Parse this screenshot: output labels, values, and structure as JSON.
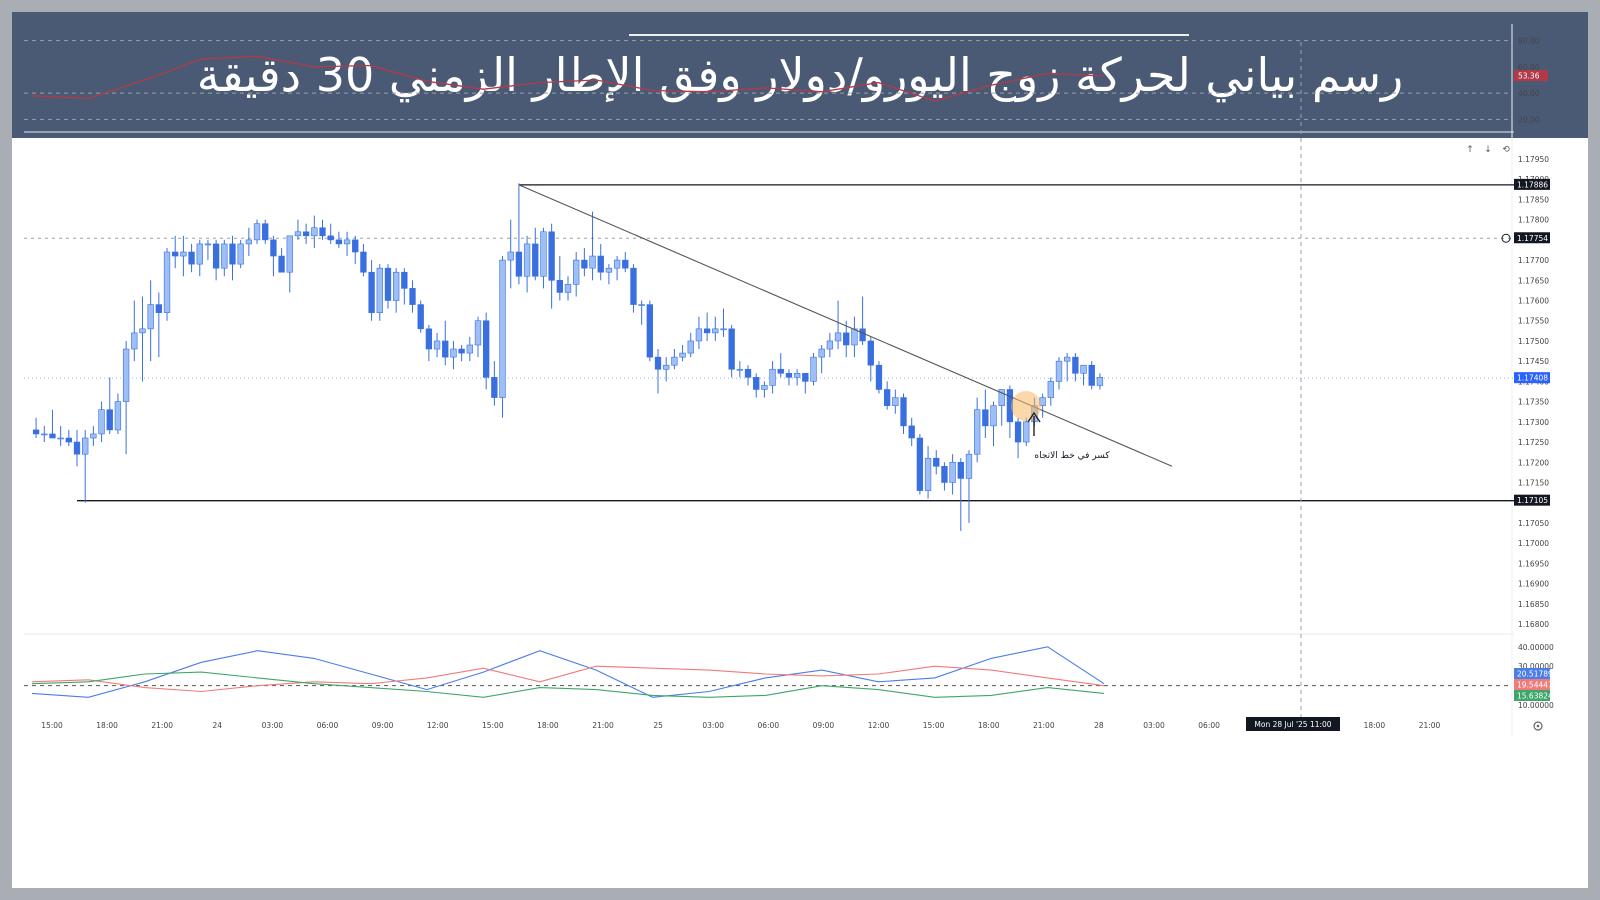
{
  "header": {
    "title": "رسم بياني لحركة زوج اليورو/دولار وفق الإطار الزمني 30 دقيقة"
  },
  "colors": {
    "banner": "#4a5a75",
    "candle_up": "#9dbff5",
    "candle_down": "#3a6fe0",
    "rsi_line": "#b23a48",
    "adx_blue": "#4a7de8",
    "adx_red": "#f07b7b",
    "adx_green": "#3fa66b",
    "price_tag_blue": "#2962ff",
    "label_dark": "#131722"
  },
  "toolbar": {
    "up_arrow": "↑",
    "down_arrow": "↓",
    "reset_icon": "⟲"
  },
  "annotation": {
    "text": "كسر في خط الاتجاه"
  },
  "crosshair": {
    "time_label": "Mon 28 Jul '25   11:00"
  },
  "chart_data": [
    {
      "type": "line",
      "panel": "rsi",
      "y_ticks": [
        "80.00",
        "60.00",
        "40.00",
        "20.00"
      ],
      "levels": [
        80,
        40,
        20
      ],
      "last_value_label": "53.36",
      "x": [
        "15:00",
        "18:00",
        "21:00",
        "24",
        "03:00",
        "06:00",
        "09:00",
        "12:00",
        "15:00",
        "18:00",
        "21:00",
        "25",
        "03:00",
        "06:00",
        "09:00",
        "12:00",
        "15:00",
        "18:00",
        "21:00",
        "28"
      ],
      "series": [
        {
          "values": [
            38,
            36,
            50,
            66,
            68,
            60,
            61,
            49,
            43,
            48,
            50,
            42,
            41,
            44,
            41,
            48,
            34,
            46,
            55,
            53
          ]
        }
      ]
    },
    {
      "type": "candlestick",
      "panel": "price",
      "y_ticks": [
        "1.17950",
        "1.17900",
        "1.17850",
        "1.17800",
        "1.17750",
        "1.17700",
        "1.17650",
        "1.17600",
        "1.17550",
        "1.17500",
        "1.17450",
        "1.17400",
        "1.17350",
        "1.17300",
        "1.17250",
        "1.17200",
        "1.17150",
        "1.17100",
        "1.17050",
        "1.17000",
        "1.16950",
        "1.16900",
        "1.16850",
        "1.16800"
      ],
      "ylim": [
        1.168,
        1.1795
      ],
      "tags": [
        {
          "value": 1.17886,
          "label": "1.17886",
          "style": "dark"
        },
        {
          "value": 1.17754,
          "label": "1.17754",
          "style": "dark"
        },
        {
          "value": 1.17408,
          "label": "1.17408",
          "style": "blue"
        },
        {
          "value": 1.17105,
          "label": "1.17105",
          "style": "dark"
        }
      ],
      "horizontal_levels": [
        1.17886,
        1.17105
      ],
      "trendline": {
        "from": [
          "17:00",
          1.17886
        ],
        "to": [
          "23:30",
          1.1719
        ]
      },
      "x_ticks": [
        "15:00",
        "18:00",
        "21:00",
        "24",
        "03:00",
        "06:00",
        "09:00",
        "12:00",
        "15:00",
        "18:00",
        "21:00",
        "25",
        "03:00",
        "06:00",
        "09:00",
        "12:00",
        "15:00",
        "18:00",
        "21:00",
        "28",
        "03:00",
        "06:00",
        "Mon 28 Jul '25   11:00",
        "15:00",
        "18:00",
        "21:00"
      ],
      "ohlc": [
        [
          1.1728,
          1.1731,
          1.1726,
          1.1727
        ],
        [
          1.1727,
          1.1729,
          1.1725,
          1.1727
        ],
        [
          1.1727,
          1.1733,
          1.1726,
          1.1726
        ],
        [
          1.1726,
          1.1729,
          1.1724,
          1.1726
        ],
        [
          1.1726,
          1.1728,
          1.1724,
          1.1725
        ],
        [
          1.1725,
          1.1728,
          1.1719,
          1.1722
        ],
        [
          1.1722,
          1.1728,
          1.171,
          1.1726
        ],
        [
          1.1726,
          1.1729,
          1.1724,
          1.1727
        ],
        [
          1.1727,
          1.1735,
          1.1725,
          1.1733
        ],
        [
          1.1733,
          1.1741,
          1.1727,
          1.1728
        ],
        [
          1.1728,
          1.1737,
          1.1727,
          1.1735
        ],
        [
          1.1735,
          1.175,
          1.1722,
          1.1748
        ],
        [
          1.1748,
          1.176,
          1.1745,
          1.1752
        ],
        [
          1.1752,
          1.1761,
          1.174,
          1.1753
        ],
        [
          1.1753,
          1.1765,
          1.1745,
          1.1759
        ],
        [
          1.1759,
          1.1762,
          1.1746,
          1.1757
        ],
        [
          1.1757,
          1.1773,
          1.1755,
          1.1772
        ],
        [
          1.1772,
          1.1776,
          1.1768,
          1.1771
        ],
        [
          1.1771,
          1.1776,
          1.1766,
          1.1772
        ],
        [
          1.1772,
          1.1774,
          1.1767,
          1.1769
        ],
        [
          1.1769,
          1.1775,
          1.1766,
          1.1774
        ],
        [
          1.1774,
          1.1775,
          1.177,
          1.1774
        ],
        [
          1.1774,
          1.1775,
          1.1765,
          1.1768
        ],
        [
          1.1768,
          1.1775,
          1.1766,
          1.1774
        ],
        [
          1.1774,
          1.1776,
          1.1765,
          1.1769
        ],
        [
          1.1769,
          1.1775,
          1.1768,
          1.1774
        ],
        [
          1.1774,
          1.1778,
          1.1771,
          1.1775
        ],
        [
          1.1775,
          1.178,
          1.1774,
          1.1779
        ],
        [
          1.1779,
          1.178,
          1.1774,
          1.1775
        ],
        [
          1.1775,
          1.1776,
          1.1766,
          1.1771
        ],
        [
          1.1771,
          1.1773,
          1.1767,
          1.1767
        ],
        [
          1.1767,
          1.1776,
          1.1762,
          1.1776
        ],
        [
          1.1776,
          1.178,
          1.1775,
          1.1777
        ],
        [
          1.1777,
          1.1779,
          1.1774,
          1.1776
        ],
        [
          1.1776,
          1.1781,
          1.1773,
          1.1778
        ],
        [
          1.1778,
          1.178,
          1.1775,
          1.1776
        ],
        [
          1.1776,
          1.1779,
          1.1774,
          1.1775
        ],
        [
          1.1775,
          1.1777,
          1.1773,
          1.1774
        ],
        [
          1.1774,
          1.1777,
          1.1771,
          1.1775
        ],
        [
          1.1775,
          1.1776,
          1.1769,
          1.1772
        ],
        [
          1.1772,
          1.1774,
          1.1766,
          1.1767
        ],
        [
          1.1767,
          1.177,
          1.1755,
          1.1757
        ],
        [
          1.1757,
          1.1769,
          1.1755,
          1.1768
        ],
        [
          1.1768,
          1.1769,
          1.1758,
          1.176
        ],
        [
          1.176,
          1.1768,
          1.1757,
          1.1767
        ],
        [
          1.1767,
          1.1768,
          1.1759,
          1.1763
        ],
        [
          1.1763,
          1.1765,
          1.1757,
          1.1759
        ],
        [
          1.1759,
          1.176,
          1.1752,
          1.1753
        ],
        [
          1.1753,
          1.1754,
          1.1745,
          1.1748
        ],
        [
          1.1748,
          1.1752,
          1.1746,
          1.175
        ],
        [
          1.175,
          1.1755,
          1.1744,
          1.1746
        ],
        [
          1.1746,
          1.175,
          1.1743,
          1.1748
        ],
        [
          1.1748,
          1.1749,
          1.1745,
          1.1747
        ],
        [
          1.1747,
          1.1751,
          1.1745,
          1.1749
        ],
        [
          1.1749,
          1.1756,
          1.1746,
          1.1755
        ],
        [
          1.1755,
          1.1757,
          1.1738,
          1.1741
        ],
        [
          1.1741,
          1.1745,
          1.1734,
          1.1736
        ],
        [
          1.1736,
          1.1771,
          1.1731,
          1.177
        ],
        [
          1.177,
          1.178,
          1.1763,
          1.1772
        ],
        [
          1.1772,
          1.1789,
          1.1764,
          1.1766
        ],
        [
          1.1766,
          1.1776,
          1.1762,
          1.1774
        ],
        [
          1.1774,
          1.1778,
          1.1765,
          1.1766
        ],
        [
          1.1766,
          1.1778,
          1.1763,
          1.1777
        ],
        [
          1.1777,
          1.1779,
          1.1758,
          1.1765
        ],
        [
          1.1765,
          1.1771,
          1.176,
          1.1762
        ],
        [
          1.1762,
          1.1766,
          1.176,
          1.1764
        ],
        [
          1.1764,
          1.1772,
          1.1761,
          1.177
        ],
        [
          1.177,
          1.1773,
          1.1766,
          1.1768
        ],
        [
          1.1768,
          1.1782,
          1.1765,
          1.1771
        ],
        [
          1.1771,
          1.1774,
          1.1765,
          1.1767
        ],
        [
          1.1767,
          1.1769,
          1.1764,
          1.1768
        ],
        [
          1.1768,
          1.1771,
          1.1765,
          1.177
        ],
        [
          1.177,
          1.1772,
          1.1767,
          1.1768
        ],
        [
          1.1768,
          1.1769,
          1.1757,
          1.1759
        ],
        [
          1.1759,
          1.176,
          1.1754,
          1.1759
        ],
        [
          1.1759,
          1.176,
          1.1745,
          1.1746
        ],
        [
          1.1746,
          1.1748,
          1.1737,
          1.1743
        ],
        [
          1.1743,
          1.1746,
          1.174,
          1.1744
        ],
        [
          1.1744,
          1.1748,
          1.1743,
          1.1746
        ],
        [
          1.1746,
          1.1749,
          1.1745,
          1.1747
        ],
        [
          1.1747,
          1.1752,
          1.1746,
          1.175
        ],
        [
          1.175,
          1.1756,
          1.1748,
          1.1753
        ],
        [
          1.1753,
          1.1757,
          1.175,
          1.1752
        ],
        [
          1.1752,
          1.1756,
          1.175,
          1.1753
        ],
        [
          1.1753,
          1.1758,
          1.1751,
          1.1753
        ],
        [
          1.1753,
          1.1754,
          1.1741,
          1.1743
        ],
        [
          1.1743,
          1.1745,
          1.1741,
          1.1743
        ],
        [
          1.1743,
          1.1744,
          1.1739,
          1.1741
        ],
        [
          1.1741,
          1.1742,
          1.1736,
          1.1738
        ],
        [
          1.1738,
          1.174,
          1.1736,
          1.1739
        ],
        [
          1.1739,
          1.1745,
          1.1737,
          1.1743
        ],
        [
          1.1743,
          1.1747,
          1.1741,
          1.1742
        ],
        [
          1.1742,
          1.1743,
          1.1739,
          1.1741
        ],
        [
          1.1741,
          1.1743,
          1.1739,
          1.1742
        ],
        [
          1.1742,
          1.1742,
          1.1737,
          1.174
        ],
        [
          1.174,
          1.1747,
          1.1739,
          1.1746
        ],
        [
          1.1746,
          1.1749,
          1.1742,
          1.1748
        ],
        [
          1.1748,
          1.1752,
          1.1746,
          1.175
        ],
        [
          1.175,
          1.176,
          1.1748,
          1.1752
        ],
        [
          1.1752,
          1.1755,
          1.1746,
          1.1749
        ],
        [
          1.1749,
          1.1756,
          1.1746,
          1.1753
        ],
        [
          1.1753,
          1.1761,
          1.1749,
          1.175
        ],
        [
          1.175,
          1.1751,
          1.174,
          1.1744
        ],
        [
          1.1744,
          1.1745,
          1.1737,
          1.1738
        ],
        [
          1.1738,
          1.174,
          1.1733,
          1.1734
        ],
        [
          1.1734,
          1.1738,
          1.1732,
          1.1736
        ],
        [
          1.1736,
          1.1737,
          1.1727,
          1.1729
        ],
        [
          1.1729,
          1.1731,
          1.1724,
          1.1726
        ],
        [
          1.1726,
          1.1727,
          1.1712,
          1.1713
        ],
        [
          1.1713,
          1.1724,
          1.1711,
          1.1721
        ],
        [
          1.1721,
          1.1723,
          1.1717,
          1.1719
        ],
        [
          1.1719,
          1.172,
          1.1713,
          1.1715
        ],
        [
          1.1715,
          1.1722,
          1.1712,
          1.172
        ],
        [
          1.172,
          1.1721,
          1.1703,
          1.1716
        ],
        [
          1.1716,
          1.1723,
          1.1705,
          1.1722
        ],
        [
          1.1722,
          1.1736,
          1.172,
          1.1733
        ],
        [
          1.1733,
          1.1738,
          1.1726,
          1.1729
        ],
        [
          1.1729,
          1.1735,
          1.1724,
          1.1734
        ],
        [
          1.1734,
          1.1738,
          1.1729,
          1.1738
        ],
        [
          1.1738,
          1.1739,
          1.1726,
          1.173
        ],
        [
          1.173,
          1.1731,
          1.1721,
          1.1725
        ],
        [
          1.1725,
          1.1731,
          1.1724,
          1.173
        ],
        [
          1.173,
          1.1736,
          1.1729,
          1.1734
        ],
        [
          1.1734,
          1.1737,
          1.1731,
          1.1736
        ],
        [
          1.1736,
          1.1741,
          1.1734,
          1.174
        ],
        [
          1.174,
          1.1746,
          1.1738,
          1.1745
        ],
        [
          1.1745,
          1.1747,
          1.174,
          1.1746
        ],
        [
          1.1746,
          1.1747,
          1.174,
          1.1742
        ],
        [
          1.1742,
          1.1744,
          1.1739,
          1.1744
        ],
        [
          1.1744,
          1.1745,
          1.1738,
          1.1739
        ],
        [
          1.1739,
          1.1742,
          1.1738,
          1.1741
        ]
      ]
    },
    {
      "type": "line",
      "panel": "adx",
      "y_ticks": [
        "40.00000",
        "30.00000",
        "10.00000"
      ],
      "level": 20,
      "tags": [
        {
          "value": 20.51789,
          "label": "20.51789",
          "color": "#4a7de8"
        },
        {
          "value": 19.54447,
          "label": "19.54447",
          "color": "#f07b7b"
        },
        {
          "value": 15.63824,
          "label": "15.63824",
          "color": "#3fa66b"
        }
      ],
      "x": [
        "15:00",
        "18:00",
        "21:00",
        "24",
        "03:00",
        "06:00",
        "09:00",
        "12:00",
        "15:00",
        "18:00",
        "21:00",
        "25",
        "03:00",
        "06:00",
        "09:00",
        "12:00",
        "15:00",
        "18:00",
        "21:00",
        "28"
      ],
      "series": [
        {
          "values": [
            16,
            14,
            22,
            32,
            38,
            34,
            26,
            18,
            27,
            38,
            28,
            14,
            17,
            24,
            28,
            22,
            24,
            34,
            40,
            21
          ],
          "color": "#4a7de8"
        },
        {
          "values": [
            22,
            23,
            19,
            17,
            20,
            22,
            21,
            24,
            29,
            22,
            30,
            29,
            28,
            26,
            25,
            26,
            30,
            28,
            24,
            20
          ],
          "color": "#f07b7b"
        },
        {
          "values": [
            21,
            22,
            26,
            27,
            24,
            21,
            19,
            17,
            14,
            19,
            18,
            15,
            14,
            15,
            20,
            18,
            14,
            15,
            19,
            16
          ],
          "color": "#3fa66b"
        }
      ]
    }
  ]
}
